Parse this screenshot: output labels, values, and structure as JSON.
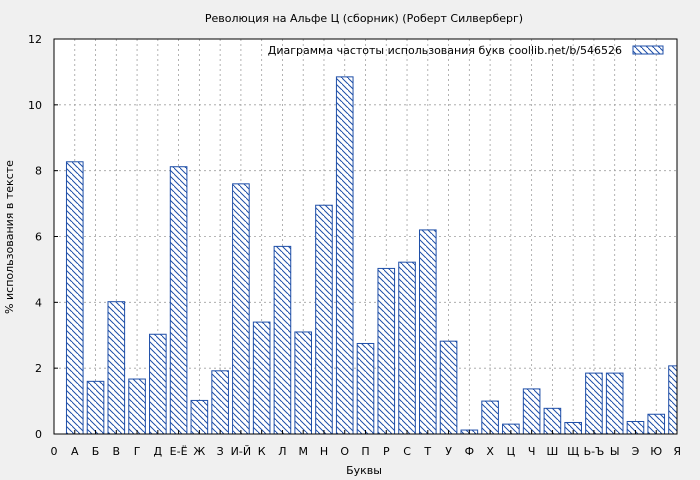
{
  "chart_data": {
    "type": "bar",
    "title": "Революция на Альфе Ц (сборник) (Роберт Силверберг)",
    "xlabel": "Буквы",
    "ylabel": "% использования в тексте",
    "legend_label": "Диаграмма частоты использования букв  coollib.net/b/546526",
    "legend_position": "top-right",
    "grid": true,
    "ylim": [
      0,
      12
    ],
    "yticks": [
      0,
      2,
      4,
      6,
      8,
      10,
      12
    ],
    "axis_start_label": "0",
    "categories": [
      "А",
      "Б",
      "В",
      "Г",
      "Д",
      "Е-Ё",
      "Ж",
      "З",
      "И-Й",
      "К",
      "Л",
      "М",
      "Н",
      "О",
      "П",
      "Р",
      "С",
      "Т",
      "У",
      "Ф",
      "Х",
      "Ц",
      "Ч",
      "Ш",
      "Щ",
      "Ь-Ъ",
      "Ы",
      "Э",
      "Ю",
      "Я"
    ],
    "values": [
      8.27,
      1.6,
      4.02,
      1.67,
      3.03,
      8.12,
      1.02,
      1.92,
      7.6,
      3.4,
      5.7,
      3.1,
      6.95,
      10.85,
      2.75,
      5.03,
      5.22,
      6.2,
      2.82,
      0.12,
      1.0,
      0.3,
      1.37,
      0.78,
      0.35,
      1.85,
      1.85,
      0.38,
      0.6,
      2.07
    ],
    "colors": {
      "bar_stroke": "#1f4fa8",
      "background": "#f0f0f0",
      "plot_bg": "#ffffff"
    }
  }
}
